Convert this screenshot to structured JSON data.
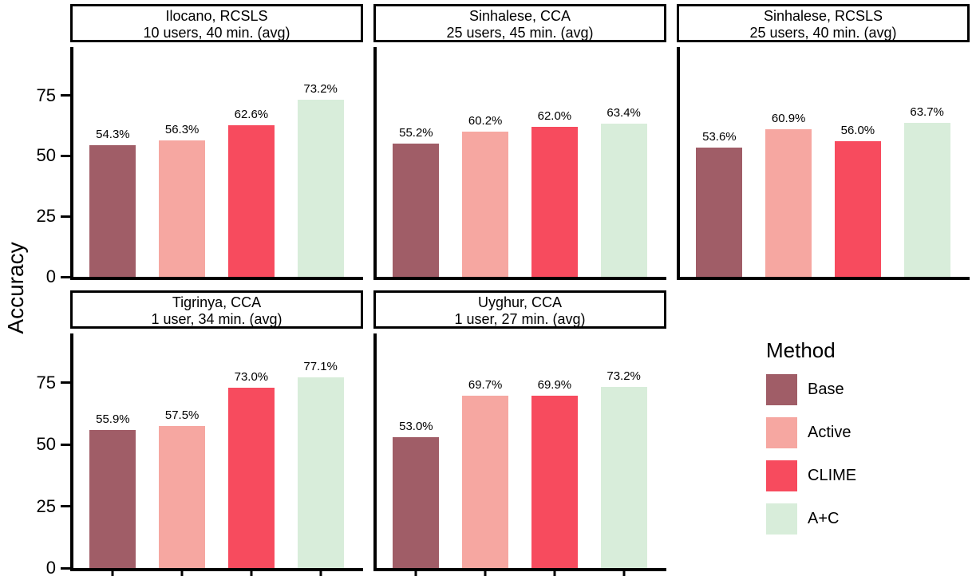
{
  "figure": {
    "ylabel": "Accuracy"
  },
  "axis": {
    "ylim": [
      0,
      95
    ],
    "ticks": [
      {
        "value": 0,
        "label": "0"
      },
      {
        "value": 25,
        "label": "25"
      },
      {
        "value": 50,
        "label": "50"
      },
      {
        "value": 75,
        "label": "75"
      }
    ]
  },
  "legend": {
    "title": "Method",
    "entries": [
      {
        "label": "Base",
        "color": "#A05D67"
      },
      {
        "label": "Active",
        "color": "#F6A7A1"
      },
      {
        "label": "CLIME",
        "color": "#F74B5E"
      },
      {
        "label": "A+C",
        "color": "#D8EDDA"
      }
    ]
  },
  "chart_data": [
    {
      "type": "bar",
      "title": "Ilocano, RCSLS",
      "subtitle": "10 users, 40 min. (avg)",
      "categories": [
        "Base",
        "Active",
        "CLIME",
        "A+C"
      ],
      "values": [
        54.3,
        56.3,
        62.6,
        73.2
      ],
      "value_labels": [
        "54.3%",
        "56.3%",
        "62.6%",
        "73.2%"
      ],
      "show_y_axis_labels": true,
      "show_x_ticks": false
    },
    {
      "type": "bar",
      "title": "Sinhalese, CCA",
      "subtitle": "25 users, 45 min. (avg)",
      "categories": [
        "Base",
        "Active",
        "CLIME",
        "A+C"
      ],
      "values": [
        55.2,
        60.2,
        62.0,
        63.4
      ],
      "value_labels": [
        "55.2%",
        "60.2%",
        "62.0%",
        "63.4%"
      ],
      "show_y_axis_labels": false,
      "show_x_ticks": false
    },
    {
      "type": "bar",
      "title": "Sinhalese, RCSLS",
      "subtitle": "25 users, 40 min. (avg)",
      "categories": [
        "Base",
        "Active",
        "CLIME",
        "A+C"
      ],
      "values": [
        53.6,
        60.9,
        56.0,
        63.7
      ],
      "value_labels": [
        "53.6%",
        "60.9%",
        "56.0%",
        "63.7%"
      ],
      "show_y_axis_labels": false,
      "show_x_ticks": false
    },
    {
      "type": "bar",
      "title": "Tigrinya, CCA",
      "subtitle": "1 user, 34 min. (avg)",
      "categories": [
        "Base",
        "Active",
        "CLIME",
        "A+C"
      ],
      "values": [
        55.9,
        57.5,
        73.0,
        77.1
      ],
      "value_labels": [
        "55.9%",
        "57.5%",
        "73.0%",
        "77.1%"
      ],
      "show_y_axis_labels": true,
      "show_x_ticks": true
    },
    {
      "type": "bar",
      "title": "Uyghur, CCA",
      "subtitle": "1 user, 27 min. (avg)",
      "categories": [
        "Base",
        "Active",
        "CLIME",
        "A+C"
      ],
      "values": [
        53.0,
        69.7,
        69.9,
        73.2
      ],
      "value_labels": [
        "53.0%",
        "69.7%",
        "69.9%",
        "73.2%"
      ],
      "show_y_axis_labels": false,
      "show_x_ticks": true
    }
  ]
}
